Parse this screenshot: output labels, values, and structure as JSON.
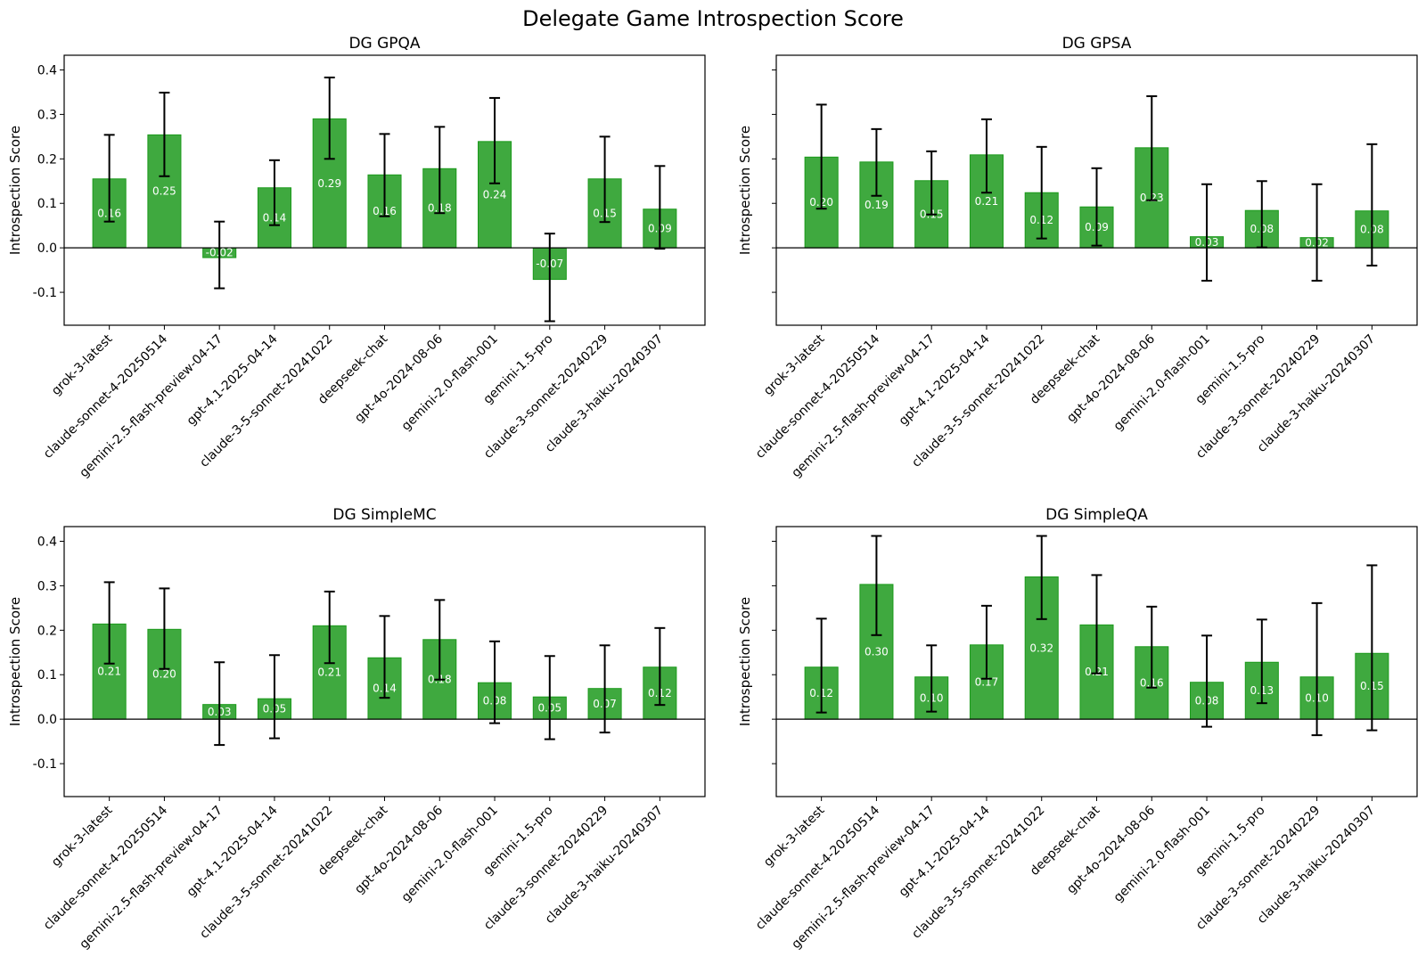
{
  "chart_data": {
    "type": "bar",
    "title": "Delegate Game Introspection Score",
    "ylabel": "Introspection Score",
    "ylim": [
      -0.174,
      0.433
    ],
    "yticks": [
      -0.1,
      0.0,
      0.1,
      0.2,
      0.3,
      0.4
    ],
    "ytick_labels": [
      "-0.1",
      "0.0",
      "0.1",
      "0.2",
      "0.3",
      "0.4"
    ],
    "shared_y": true,
    "zero_line": true,
    "bar_color": "#3fa93f",
    "bar_edge_color": "#1b9a1b",
    "errorbar_color": "#000000",
    "categories": [
      "grok-3-latest",
      "claude-sonnet-4-20250514",
      "gemini-2.5-flash-preview-04-17",
      "gpt-4.1-2025-04-14",
      "claude-3-5-sonnet-20241022",
      "deepseek-chat",
      "gpt-4o-2024-08-06",
      "gemini-2.0-flash-001",
      "gemini-1.5-pro",
      "claude-3-sonnet-20240229",
      "claude-3-haiku-20240307"
    ],
    "panels": [
      {
        "title": "DG GPQA",
        "position": "top-left",
        "values": [
          0.155,
          0.254,
          -0.022,
          0.135,
          0.29,
          0.164,
          0.178,
          0.239,
          -0.071,
          0.155,
          0.087
        ],
        "labels": [
          "0.16",
          "0.25",
          "-0.02",
          "0.14",
          "0.29",
          "0.16",
          "0.18",
          "0.24",
          "-0.07",
          "0.15",
          "0.09"
        ],
        "ci_low": [
          0.059,
          0.161,
          -0.091,
          0.051,
          0.2,
          0.071,
          0.078,
          0.145,
          -0.165,
          0.058,
          -0.002
        ],
        "ci_high": [
          0.254,
          0.349,
          0.059,
          0.197,
          0.383,
          0.256,
          0.272,
          0.337,
          0.032,
          0.25,
          0.184
        ]
      },
      {
        "title": "DG GPSA",
        "position": "top-right",
        "values": [
          0.204,
          0.193,
          0.151,
          0.209,
          0.124,
          0.092,
          0.225,
          0.025,
          0.084,
          0.023,
          0.083
        ],
        "labels": [
          "0.20",
          "0.19",
          "0.15",
          "0.21",
          "0.12",
          "0.09",
          "0.23",
          "0.03",
          "0.08",
          "0.02",
          "0.08"
        ],
        "ci_low": [
          0.088,
          0.117,
          0.075,
          0.124,
          0.021,
          0.005,
          0.107,
          -0.074,
          0.001,
          -0.074,
          -0.04
        ],
        "ci_high": [
          0.322,
          0.267,
          0.217,
          0.289,
          0.227,
          0.179,
          0.341,
          0.143,
          0.15,
          0.143,
          0.233
        ]
      },
      {
        "title": "DG SimpleMC",
        "position": "bottom-left",
        "values": [
          0.214,
          0.202,
          0.033,
          0.046,
          0.21,
          0.138,
          0.179,
          0.082,
          0.05,
          0.069,
          0.117
        ],
        "labels": [
          "0.21",
          "0.20",
          "0.03",
          "0.05",
          "0.21",
          "0.14",
          "0.18",
          "0.08",
          "0.05",
          "0.07",
          "0.12"
        ],
        "ci_low": [
          0.125,
          0.113,
          -0.058,
          -0.043,
          0.126,
          0.048,
          0.089,
          -0.009,
          -0.045,
          -0.03,
          0.032
        ],
        "ci_high": [
          0.308,
          0.294,
          0.128,
          0.144,
          0.287,
          0.232,
          0.268,
          0.175,
          0.142,
          0.166,
          0.205
        ]
      },
      {
        "title": "DG SimpleQA",
        "position": "bottom-right",
        "values": [
          0.117,
          0.303,
          0.095,
          0.167,
          0.32,
          0.212,
          0.163,
          0.083,
          0.128,
          0.095,
          0.148
        ],
        "labels": [
          "0.12",
          "0.30",
          "0.10",
          "0.17",
          "0.32",
          "0.21",
          "0.16",
          "0.08",
          "0.13",
          "0.10",
          "0.15"
        ],
        "ci_low": [
          0.015,
          0.189,
          0.017,
          0.091,
          0.225,
          0.103,
          0.071,
          -0.017,
          0.036,
          -0.036,
          -0.025
        ],
        "ci_high": [
          0.226,
          0.412,
          0.166,
          0.255,
          0.412,
          0.324,
          0.253,
          0.188,
          0.224,
          0.261,
          0.346
        ]
      }
    ]
  }
}
